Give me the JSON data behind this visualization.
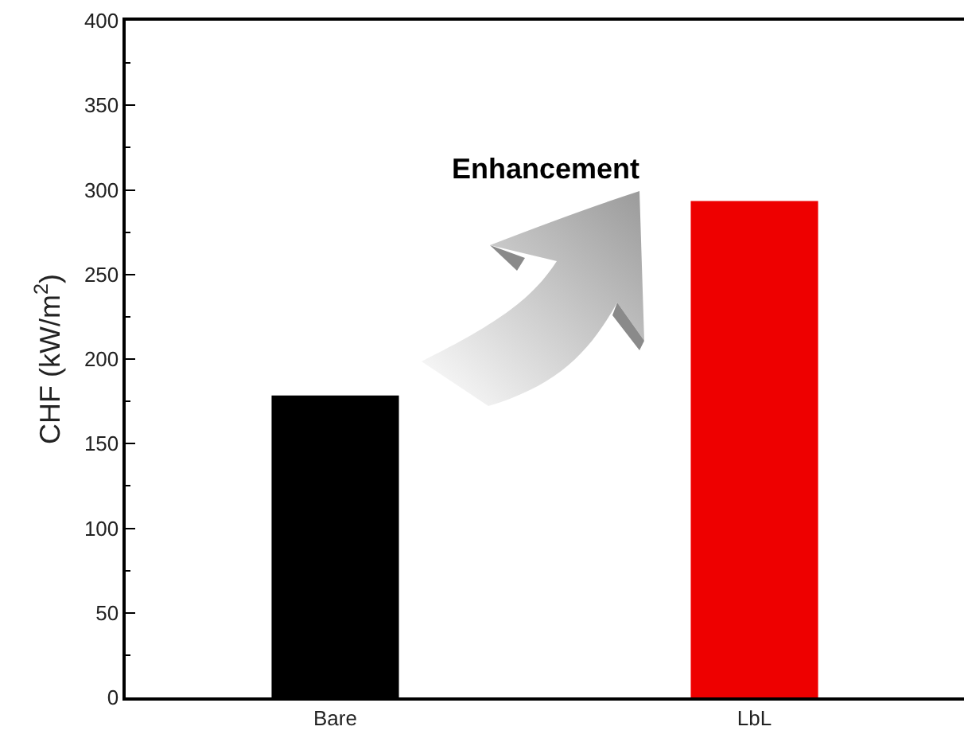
{
  "chart_data": {
    "type": "bar",
    "ylabel": "CHF (kW/m$^{2}$)",
    "categories": [
      "Bare",
      "LbL"
    ],
    "values": [
      178,
      293
    ],
    "colors": [
      "#000000",
      "#ee0000"
    ],
    "ylim": [
      0,
      400
    ],
    "yticks": [
      0,
      50,
      100,
      150,
      200,
      250,
      300,
      350,
      400
    ],
    "annotations": [
      "Enhancement"
    ],
    "grid": false
  }
}
